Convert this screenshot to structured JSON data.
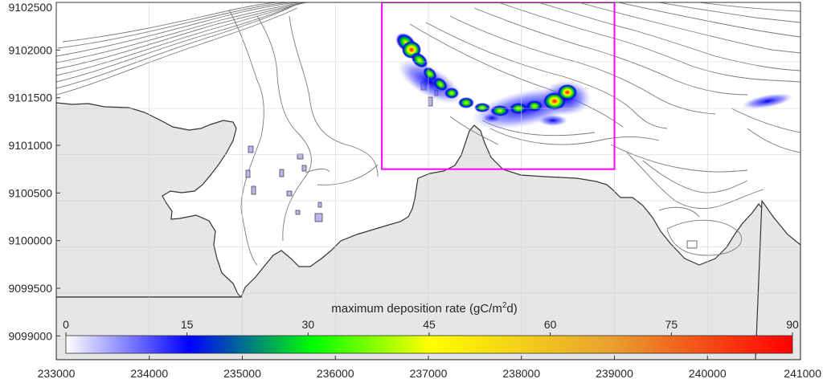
{
  "chart_data": {
    "type": "heatmap",
    "title": "",
    "xlabel": "",
    "ylabel": "",
    "xlim": [
      233000,
      241000
    ],
    "ylim": [
      9098750,
      9102500
    ],
    "x_ticks": [
      "233000",
      "234000",
      "235000",
      "236000",
      "237000",
      "238000",
      "239000",
      "240000",
      "241000"
    ],
    "y_ticks": [
      "9102500",
      "9102000",
      "9101500",
      "9101000",
      "9100500",
      "9100000",
      "9099500",
      "9099000"
    ],
    "grid": true,
    "colorbar": {
      "title_prefix": "maximum deposition rate (gC/m",
      "title_exp": "2",
      "title_suffix": "d)",
      "min": 0,
      "max": 90,
      "tick_labels": [
        "0",
        "15",
        "30",
        "45",
        "60",
        "75",
        "90"
      ],
      "colors": [
        "#ffffff",
        "#0000ff",
        "#00ff00",
        "#ffff00",
        "#e8a030",
        "#ff0000"
      ]
    },
    "focus_box": {
      "x": [
        236500,
        239000
      ],
      "y": [
        9100750,
        9102500
      ],
      "color": "#ff00ff"
    },
    "land_color": "#e6e6e6",
    "water_color": "#ffffff"
  }
}
